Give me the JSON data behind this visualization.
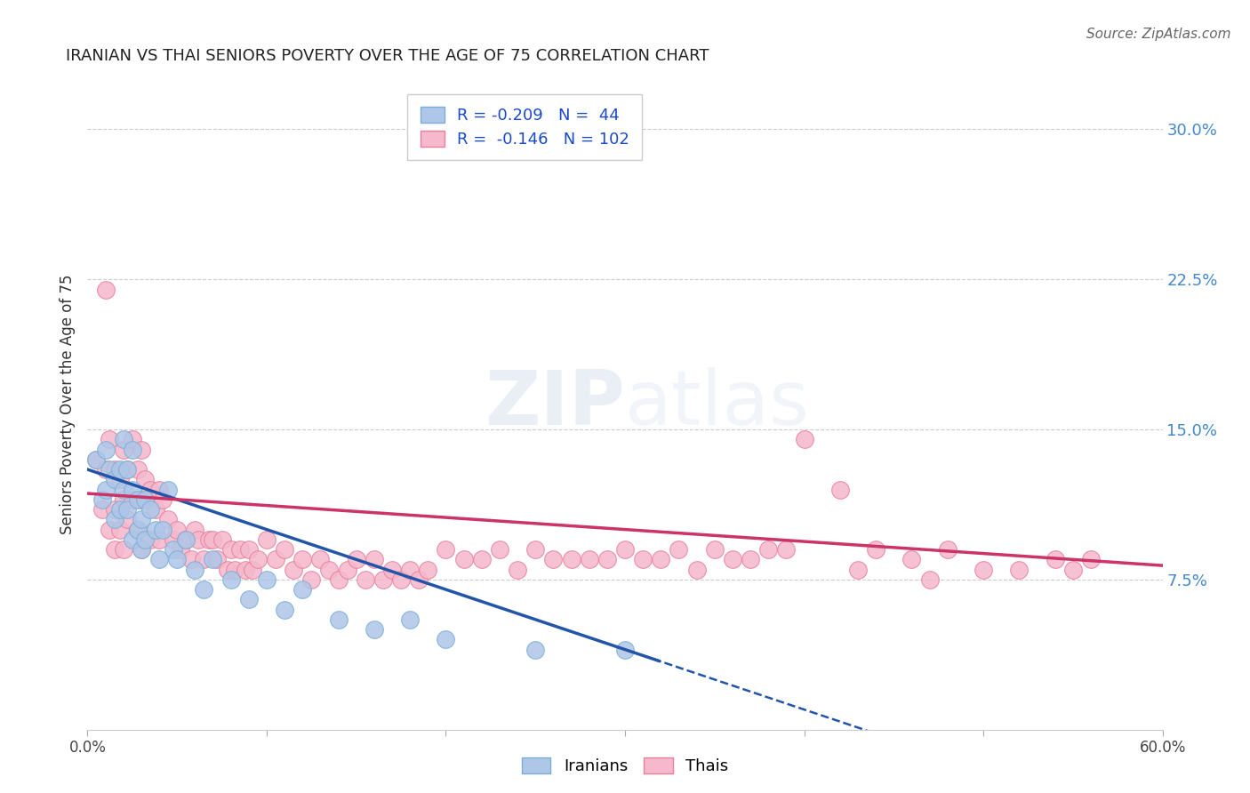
{
  "title": "IRANIAN VS THAI SENIORS POVERTY OVER THE AGE OF 75 CORRELATION CHART",
  "source": "Source: ZipAtlas.com",
  "ylabel": "Seniors Poverty Over the Age of 75",
  "xlim": [
    0.0,
    0.6
  ],
  "ylim": [
    0.0,
    0.325
  ],
  "yticks_right": [
    0.075,
    0.15,
    0.225,
    0.3
  ],
  "yticks_right_labels": [
    "7.5%",
    "15.0%",
    "22.5%",
    "30.0%"
  ],
  "grid_color": "#cccccc",
  "background_color": "#ffffff",
  "iranian_color": "#aec6e8",
  "thai_color": "#f5b8cc",
  "iranian_edge": "#7aafd4",
  "thai_edge": "#e8809c",
  "trend_iranian_color": "#2255aa",
  "trend_thai_color": "#cc3366",
  "R_iranian": -0.209,
  "N_iranian": 44,
  "R_thai": -0.146,
  "N_thai": 102,
  "legend_iranian": "Iranians",
  "legend_thai": "Thais",
  "iranians_x": [
    0.005,
    0.008,
    0.01,
    0.01,
    0.012,
    0.015,
    0.015,
    0.018,
    0.018,
    0.02,
    0.02,
    0.022,
    0.022,
    0.025,
    0.025,
    0.025,
    0.028,
    0.028,
    0.03,
    0.03,
    0.032,
    0.032,
    0.035,
    0.038,
    0.04,
    0.042,
    0.045,
    0.048,
    0.05,
    0.055,
    0.06,
    0.065,
    0.07,
    0.08,
    0.09,
    0.1,
    0.11,
    0.12,
    0.14,
    0.16,
    0.18,
    0.2,
    0.25,
    0.3
  ],
  "iranians_y": [
    0.135,
    0.115,
    0.14,
    0.12,
    0.13,
    0.125,
    0.105,
    0.13,
    0.11,
    0.145,
    0.12,
    0.11,
    0.13,
    0.095,
    0.12,
    0.14,
    0.1,
    0.115,
    0.09,
    0.105,
    0.115,
    0.095,
    0.11,
    0.1,
    0.085,
    0.1,
    0.12,
    0.09,
    0.085,
    0.095,
    0.08,
    0.07,
    0.085,
    0.075,
    0.065,
    0.075,
    0.06,
    0.07,
    0.055,
    0.05,
    0.055,
    0.045,
    0.04,
    0.04
  ],
  "thais_x": [
    0.005,
    0.008,
    0.01,
    0.01,
    0.012,
    0.012,
    0.015,
    0.015,
    0.015,
    0.018,
    0.018,
    0.02,
    0.02,
    0.02,
    0.022,
    0.022,
    0.025,
    0.025,
    0.028,
    0.028,
    0.03,
    0.03,
    0.03,
    0.032,
    0.035,
    0.035,
    0.038,
    0.04,
    0.04,
    0.042,
    0.045,
    0.048,
    0.05,
    0.052,
    0.055,
    0.058,
    0.06,
    0.062,
    0.065,
    0.068,
    0.07,
    0.072,
    0.075,
    0.078,
    0.08,
    0.082,
    0.085,
    0.088,
    0.09,
    0.092,
    0.095,
    0.1,
    0.105,
    0.11,
    0.115,
    0.12,
    0.125,
    0.13,
    0.135,
    0.14,
    0.145,
    0.15,
    0.155,
    0.16,
    0.165,
    0.17,
    0.175,
    0.18,
    0.185,
    0.19,
    0.2,
    0.21,
    0.22,
    0.23,
    0.24,
    0.25,
    0.26,
    0.27,
    0.28,
    0.29,
    0.3,
    0.31,
    0.32,
    0.33,
    0.34,
    0.35,
    0.36,
    0.37,
    0.38,
    0.39,
    0.4,
    0.42,
    0.44,
    0.46,
    0.48,
    0.5,
    0.52,
    0.54,
    0.55,
    0.56,
    0.43,
    0.47
  ],
  "thais_y": [
    0.135,
    0.11,
    0.22,
    0.13,
    0.145,
    0.1,
    0.13,
    0.11,
    0.09,
    0.125,
    0.1,
    0.14,
    0.115,
    0.09,
    0.13,
    0.105,
    0.145,
    0.115,
    0.13,
    0.1,
    0.14,
    0.115,
    0.09,
    0.125,
    0.12,
    0.095,
    0.11,
    0.12,
    0.095,
    0.115,
    0.105,
    0.095,
    0.1,
    0.09,
    0.095,
    0.085,
    0.1,
    0.095,
    0.085,
    0.095,
    0.095,
    0.085,
    0.095,
    0.08,
    0.09,
    0.08,
    0.09,
    0.08,
    0.09,
    0.08,
    0.085,
    0.095,
    0.085,
    0.09,
    0.08,
    0.085,
    0.075,
    0.085,
    0.08,
    0.075,
    0.08,
    0.085,
    0.075,
    0.085,
    0.075,
    0.08,
    0.075,
    0.08,
    0.075,
    0.08,
    0.09,
    0.085,
    0.085,
    0.09,
    0.08,
    0.09,
    0.085,
    0.085,
    0.085,
    0.085,
    0.09,
    0.085,
    0.085,
    0.09,
    0.08,
    0.09,
    0.085,
    0.085,
    0.09,
    0.09,
    0.145,
    0.12,
    0.09,
    0.085,
    0.09,
    0.08,
    0.08,
    0.085,
    0.08,
    0.085,
    0.08,
    0.075
  ],
  "trend_iranian_intercept": 0.13,
  "trend_iranian_slope": -0.3,
  "trend_thai_intercept": 0.118,
  "trend_thai_slope": -0.06,
  "trend_solid_end_iranian": 0.32
}
